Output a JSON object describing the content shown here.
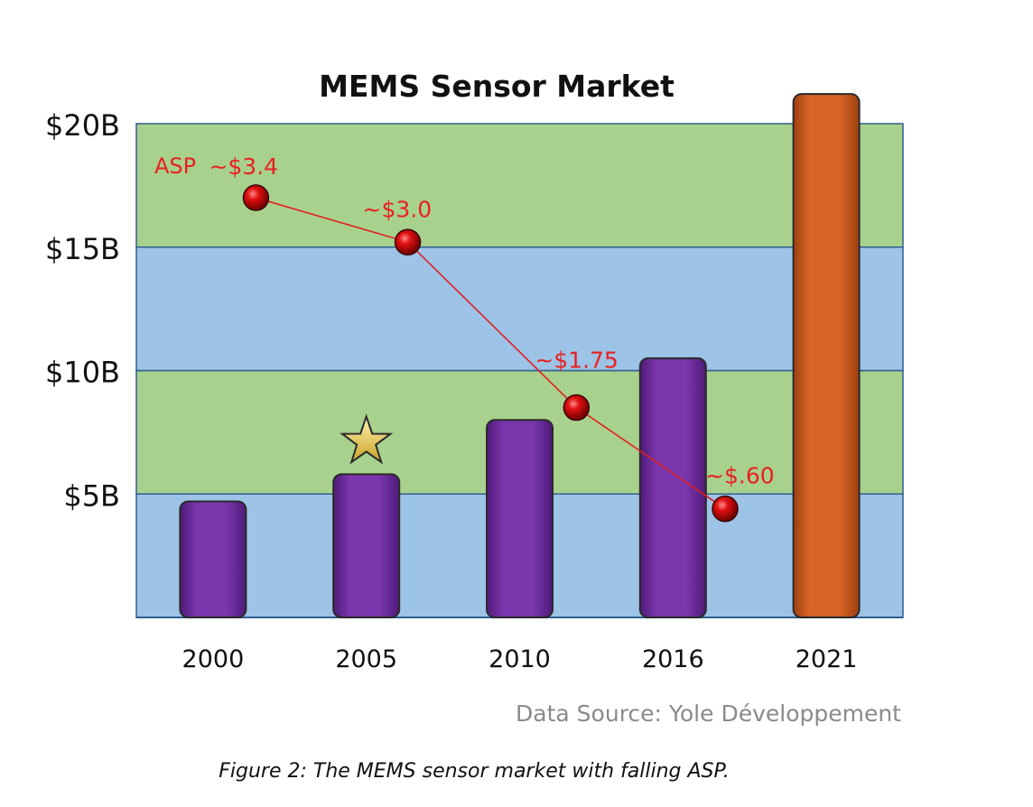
{
  "chart_data": {
    "type": "bar",
    "title": "MEMS Sensor Market",
    "categories": [
      "2000",
      "2005",
      "2010",
      "2016",
      "2021"
    ],
    "values": [
      4.7,
      5.8,
      8.0,
      10.5,
      21.2
    ],
    "value_unit": "USD billions",
    "ylim": [
      0,
      20
    ],
    "yticks": [
      5,
      10,
      15,
      20
    ],
    "ytick_labels": [
      "$5B",
      "$10B",
      "$15B",
      "$20B"
    ],
    "xlabel": "",
    "ylabel": "",
    "band_colors": [
      "#9dc3e6",
      "#a9d18e"
    ],
    "bar_colors": [
      "#7030a0",
      "#7030a0",
      "#7030a0",
      "#7030a0",
      "#d06020"
    ],
    "marker": {
      "category": "2005",
      "symbol": "star"
    },
    "asp_series": {
      "name": "ASP",
      "line_color": "#e02020",
      "points": [
        {
          "x_pos": 1.28,
          "y": 17.0,
          "label": "~$3.4"
        },
        {
          "x_pos": 2.27,
          "y": 15.2,
          "label": "~$3.0"
        },
        {
          "x_pos": 3.37,
          "y": 8.5,
          "label": "~$1.75"
        },
        {
          "x_pos": 4.34,
          "y": 4.4,
          "label": "~$.60"
        }
      ]
    },
    "source": "Data Source: Yole Développement"
  },
  "caption": "Figure 2: The MEMS sensor market with falling ASP."
}
